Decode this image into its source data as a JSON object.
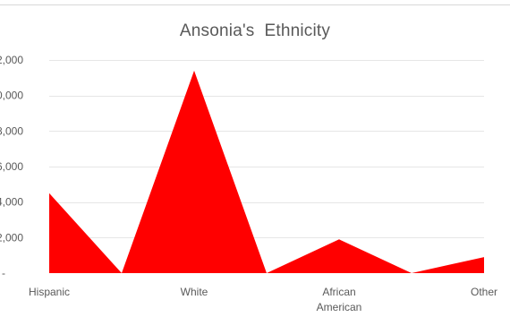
{
  "chart_data": {
    "type": "area",
    "title": "Ansonia's  Ethnicity",
    "categories": [
      "Hispanic",
      "",
      "White",
      "",
      "African American",
      "",
      "Other"
    ],
    "category_labels": [
      {
        "index": 0,
        "lines": [
          "Hispanic"
        ]
      },
      {
        "index": 2,
        "lines": [
          "White"
        ]
      },
      {
        "index": 4,
        "lines": [
          "African",
          "American"
        ]
      },
      {
        "index": 6,
        "lines": [
          "Other"
        ]
      }
    ],
    "series": [
      {
        "values": [
          4500,
          0,
          11400,
          0,
          1900,
          0,
          900
        ]
      }
    ],
    "ylim": [
      0,
      12000
    ],
    "yticks": [
      0,
      2000,
      4000,
      6000,
      8000,
      10000,
      12000
    ],
    "ytick_labels": [
      "-",
      ",000",
      ",000",
      ",000",
      ",000",
      ",000",
      ",000"
    ],
    "ytick_label_prefixes": [
      "",
      "2",
      "4",
      "6",
      "8",
      "0",
      "2"
    ],
    "grid": true,
    "legend": "none",
    "fill_color": "#ff0000",
    "grid_color": "#e6e6e6"
  }
}
